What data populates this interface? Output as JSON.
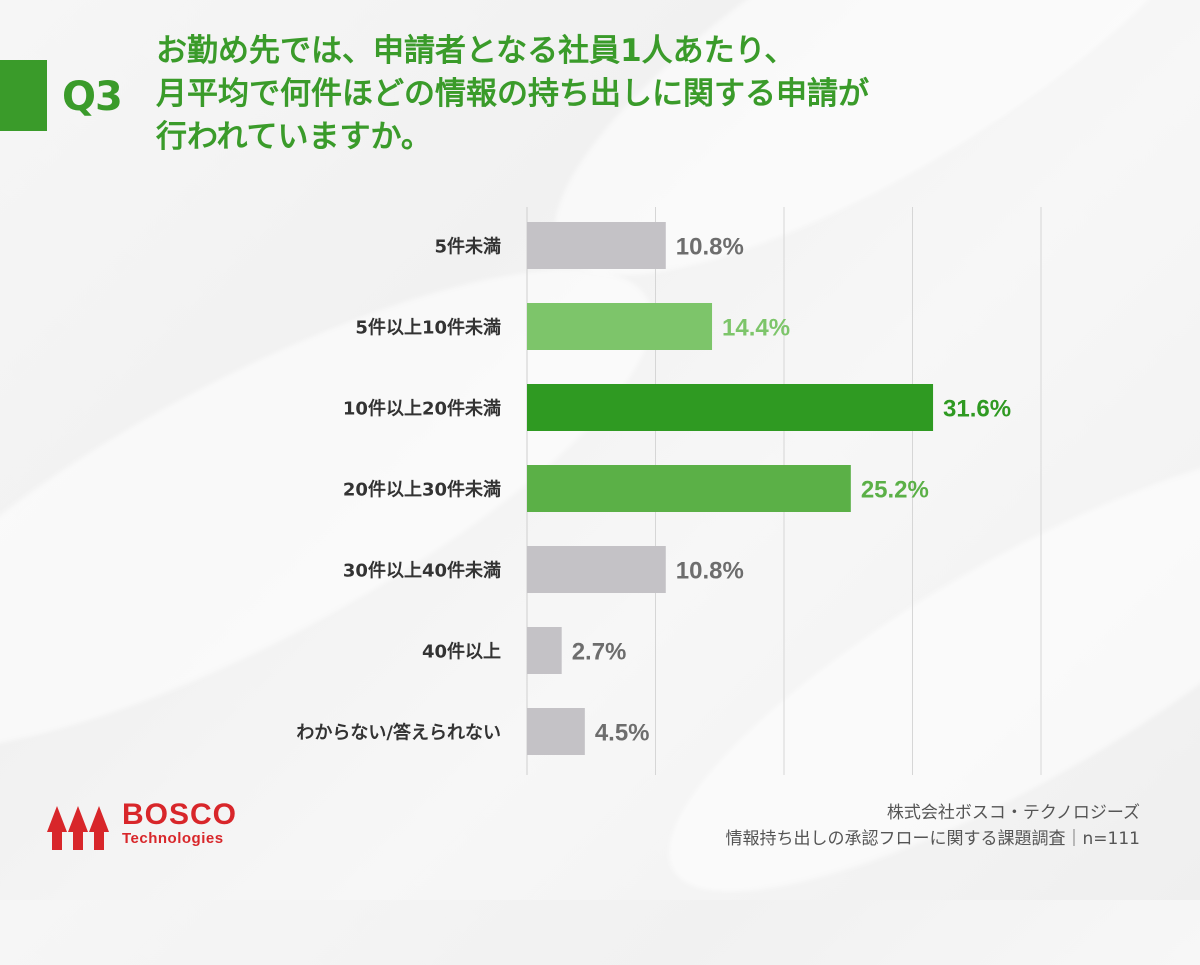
{
  "header": {
    "question_number": "Q3",
    "question_lines": [
      "お勤め先では、申請者となる社員1人あたり、",
      "月平均で何件ほどの情報の持ち出しに関する申請が",
      "行われていますか。"
    ]
  },
  "colors": {
    "accent": "#3a9b2a",
    "gray_bar": "#c4c2c6",
    "gray_label": "#6d6d6d",
    "brand_red": "#d8262a"
  },
  "chart_data": {
    "type": "bar",
    "orientation": "horizontal",
    "categories": [
      "5件未満",
      "5件以上10件未満",
      "10件以上20件未満",
      "20件以上30件未満",
      "30件以上40件未満",
      "40件以上",
      "わからない/答えられない"
    ],
    "values": [
      10.8,
      14.4,
      31.6,
      25.2,
      10.8,
      2.7,
      4.5
    ],
    "value_labels": [
      "10.8%",
      "14.4%",
      "31.6%",
      "25.2%",
      "10.8%",
      "2.7%",
      "4.5%"
    ],
    "bar_colors": [
      "#c4c2c6",
      "#7dc56a",
      "#2f9a22",
      "#5bb047",
      "#c4c2c6",
      "#c4c2c6",
      "#c4c2c6"
    ],
    "label_colors": [
      "#6d6d6d",
      "#7dc56a",
      "#2f9a22",
      "#5bb047",
      "#6d6d6d",
      "#6d6d6d",
      "#6d6d6d"
    ],
    "xlim": [
      0,
      40
    ],
    "grid": true
  },
  "footer": {
    "company": "株式会社ボスコ・テクノロジーズ",
    "survey": "情報持ち出しの承認フローに関する課題調査｜n=111"
  },
  "logo": {
    "name": "BOSCO",
    "sub": "Technologies"
  }
}
